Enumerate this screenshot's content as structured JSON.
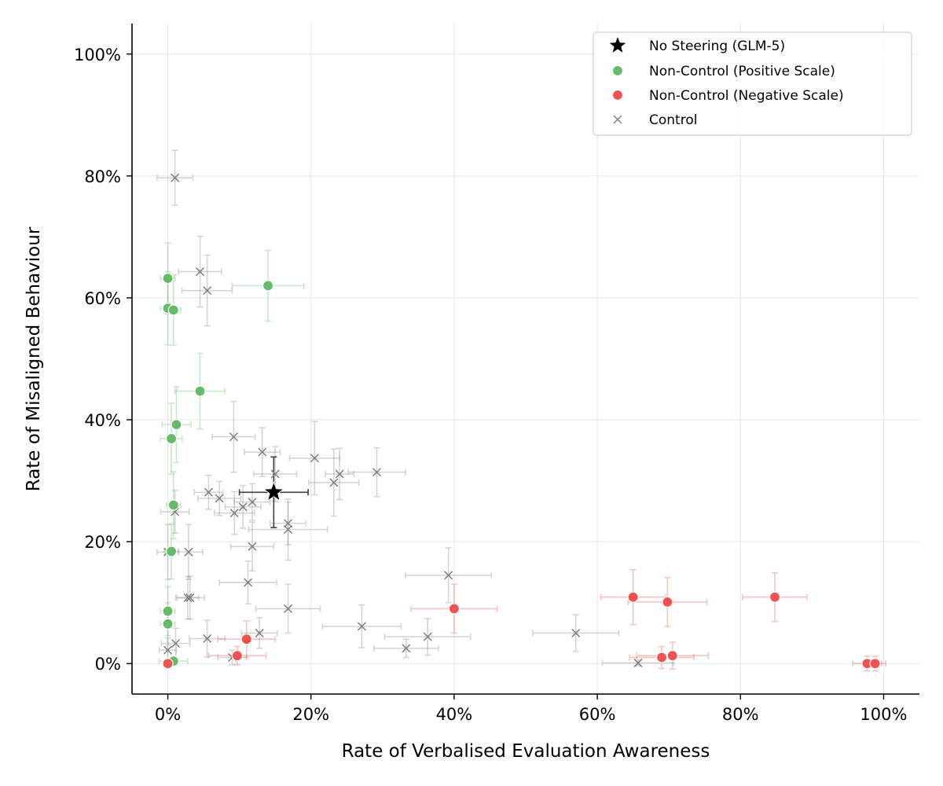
{
  "chart_data": {
    "type": "scatter",
    "title": "",
    "xlabel": "Rate of Verbalised Evaluation Awareness",
    "ylabel": "Rate of Misaligned Behaviour",
    "xlim": [
      -0.05,
      1.05
    ],
    "ylim": [
      -0.05,
      1.05
    ],
    "xticks": [
      0,
      0.2,
      0.4,
      0.6,
      0.8,
      1.0
    ],
    "yticks": [
      0,
      0.2,
      0.4,
      0.6,
      0.8,
      1.0
    ],
    "xtick_labels": [
      "0%",
      "20%",
      "40%",
      "60%",
      "80%",
      "100%"
    ],
    "ytick_labels": [
      "0%",
      "20%",
      "40%",
      "60%",
      "80%",
      "100%"
    ],
    "grid": true,
    "legend_position": "top-right",
    "colors": {
      "baseline": "#000000",
      "positive": "#66bb6a",
      "negative": "#ef5350",
      "control": "#7f7f7f"
    },
    "series": [
      {
        "name": "Control",
        "marker": "x",
        "color_key": "control",
        "points": [
          {
            "x": 0.01,
            "y": 0.797,
            "xerr": 0.025,
            "yerr": 0.045
          },
          {
            "x": 0.045,
            "y": 0.643,
            "xerr": 0.03,
            "yerr": 0.058
          },
          {
            "x": 0.055,
            "y": 0.612,
            "xerr": 0.035,
            "yerr": 0.058
          },
          {
            "x": 0.092,
            "y": 0.372,
            "xerr": 0.03,
            "yerr": 0.058
          },
          {
            "x": 0.132,
            "y": 0.347,
            "xerr": 0.025,
            "yerr": 0.04
          },
          {
            "x": 0.15,
            "y": 0.311,
            "xerr": 0.03,
            "yerr": 0.045
          },
          {
            "x": 0.205,
            "y": 0.337,
            "xerr": 0.035,
            "yerr": 0.06
          },
          {
            "x": 0.24,
            "y": 0.311,
            "xerr": 0.02,
            "yerr": 0.042
          },
          {
            "x": 0.232,
            "y": 0.297,
            "xerr": 0.035,
            "yerr": 0.055
          },
          {
            "x": 0.292,
            "y": 0.314,
            "xerr": 0.04,
            "yerr": 0.04
          },
          {
            "x": 0.057,
            "y": 0.281,
            "xerr": 0.02,
            "yerr": 0.028
          },
          {
            "x": 0.072,
            "y": 0.271,
            "xerr": 0.03,
            "yerr": 0.028
          },
          {
            "x": 0.01,
            "y": 0.249,
            "xerr": 0.02,
            "yerr": 0.035
          },
          {
            "x": 0.093,
            "y": 0.247,
            "xerr": 0.028,
            "yerr": 0.035
          },
          {
            "x": 0.105,
            "y": 0.257,
            "xerr": 0.025,
            "yerr": 0.035
          },
          {
            "x": 0.118,
            "y": 0.265,
            "xerr": 0.025,
            "yerr": 0.03
          },
          {
            "x": 0.168,
            "y": 0.23,
            "xerr": 0.025,
            "yerr": 0.035
          },
          {
            "x": 0.168,
            "y": 0.22,
            "xerr": 0.055,
            "yerr": 0.05
          },
          {
            "x": 0.118,
            "y": 0.192,
            "xerr": 0.03,
            "yerr": 0.04
          },
          {
            "x": 0.0,
            "y": 0.183,
            "xerr": 0.015,
            "yerr": 0.045
          },
          {
            "x": 0.029,
            "y": 0.183,
            "xerr": 0.02,
            "yerr": 0.045
          },
          {
            "x": 0.028,
            "y": 0.108,
            "xerr": 0.015,
            "yerr": 0.035
          },
          {
            "x": 0.031,
            "y": 0.108,
            "xerr": 0.02,
            "yerr": 0.035
          },
          {
            "x": 0.112,
            "y": 0.133,
            "xerr": 0.04,
            "yerr": 0.035
          },
          {
            "x": 0.168,
            "y": 0.09,
            "xerr": 0.045,
            "yerr": 0.04
          },
          {
            "x": 0.392,
            "y": 0.145,
            "xerr": 0.06,
            "yerr": 0.045
          },
          {
            "x": 0.271,
            "y": 0.061,
            "xerr": 0.055,
            "yerr": 0.035
          },
          {
            "x": 0.363,
            "y": 0.044,
            "xerr": 0.06,
            "yerr": 0.03
          },
          {
            "x": 0.333,
            "y": 0.025,
            "xerr": 0.045,
            "yerr": 0.015
          },
          {
            "x": 0.57,
            "y": 0.05,
            "xerr": 0.06,
            "yerr": 0.03
          },
          {
            "x": 0.657,
            "y": 0.001,
            "xerr": 0.05,
            "yerr": 0.005
          },
          {
            "x": 0.055,
            "y": 0.041,
            "xerr": 0.025,
            "yerr": 0.03
          },
          {
            "x": 0.128,
            "y": 0.05,
            "xerr": 0.025,
            "yerr": 0.025
          },
          {
            "x": 0.09,
            "y": 0.01,
            "xerr": 0.02,
            "yerr": 0.012
          },
          {
            "x": 0.011,
            "y": 0.033,
            "xerr": 0.02,
            "yerr": 0.025
          },
          {
            "x": 0.0,
            "y": 0.022,
            "xerr": 0.012,
            "yerr": 0.02
          }
        ]
      },
      {
        "name": "Non-Control (Positive Scale)",
        "marker": "o",
        "color_key": "positive",
        "points": [
          {
            "x": 0.0,
            "y": 0.632,
            "xerr": 0.01,
            "yerr": 0.058
          },
          {
            "x": 0.14,
            "y": 0.62,
            "xerr": 0.05,
            "yerr": 0.058
          },
          {
            "x": 0.0,
            "y": 0.583,
            "xerr": 0.01,
            "yerr": 0.06
          },
          {
            "x": 0.008,
            "y": 0.58,
            "xerr": 0.01,
            "yerr": 0.058
          },
          {
            "x": 0.045,
            "y": 0.447,
            "xerr": 0.035,
            "yerr": 0.062
          },
          {
            "x": 0.012,
            "y": 0.392,
            "xerr": 0.02,
            "yerr": 0.062
          },
          {
            "x": 0.005,
            "y": 0.369,
            "xerr": 0.015,
            "yerr": 0.058
          },
          {
            "x": 0.008,
            "y": 0.26,
            "xerr": 0.01,
            "yerr": 0.055
          },
          {
            "x": 0.005,
            "y": 0.184,
            "xerr": 0.01,
            "yerr": 0.045
          },
          {
            "x": 0.0,
            "y": 0.086,
            "xerr": 0.01,
            "yerr": 0.04
          },
          {
            "x": 0.0,
            "y": 0.065,
            "xerr": 0.01,
            "yerr": 0.035
          },
          {
            "x": 0.008,
            "y": 0.004,
            "xerr": 0.02,
            "yerr": 0.008
          }
        ]
      },
      {
        "name": "Non-Control (Negative Scale)",
        "marker": "o",
        "color_key": "negative",
        "points": [
          {
            "x": 0.4,
            "y": 0.09,
            "xerr": 0.06,
            "yerr": 0.04
          },
          {
            "x": 0.65,
            "y": 0.109,
            "xerr": 0.045,
            "yerr": 0.045
          },
          {
            "x": 0.698,
            "y": 0.101,
            "xerr": 0.055,
            "yerr": 0.04
          },
          {
            "x": 0.848,
            "y": 0.109,
            "xerr": 0.045,
            "yerr": 0.04
          },
          {
            "x": 0.11,
            "y": 0.04,
            "xerr": 0.04,
            "yerr": 0.03
          },
          {
            "x": 0.097,
            "y": 0.013,
            "xerr": 0.04,
            "yerr": 0.015
          },
          {
            "x": 0.0,
            "y": 0.0,
            "xerr": 0.005,
            "yerr": 0.005
          },
          {
            "x": 0.69,
            "y": 0.01,
            "xerr": 0.045,
            "yerr": 0.018
          },
          {
            "x": 0.705,
            "y": 0.013,
            "xerr": 0.05,
            "yerr": 0.022
          },
          {
            "x": 0.977,
            "y": 0.0,
            "xerr": 0.02,
            "yerr": 0.012
          },
          {
            "x": 0.988,
            "y": 0.0,
            "xerr": 0.015,
            "yerr": 0.012
          }
        ]
      },
      {
        "name": "No Steering (GLM-5)",
        "marker": "star",
        "color_key": "baseline",
        "points": [
          {
            "x": 0.148,
            "y": 0.281,
            "xerr": 0.048,
            "yerr": 0.058
          }
        ]
      }
    ],
    "legend": [
      {
        "label": "No Steering (GLM-5)",
        "marker": "star",
        "color_key": "baseline"
      },
      {
        "label": "Non-Control (Positive Scale)",
        "marker": "o",
        "color_key": "positive"
      },
      {
        "label": "Non-Control (Negative Scale)",
        "marker": "o",
        "color_key": "negative"
      },
      {
        "label": "Control",
        "marker": "x",
        "color_key": "control"
      }
    ]
  }
}
